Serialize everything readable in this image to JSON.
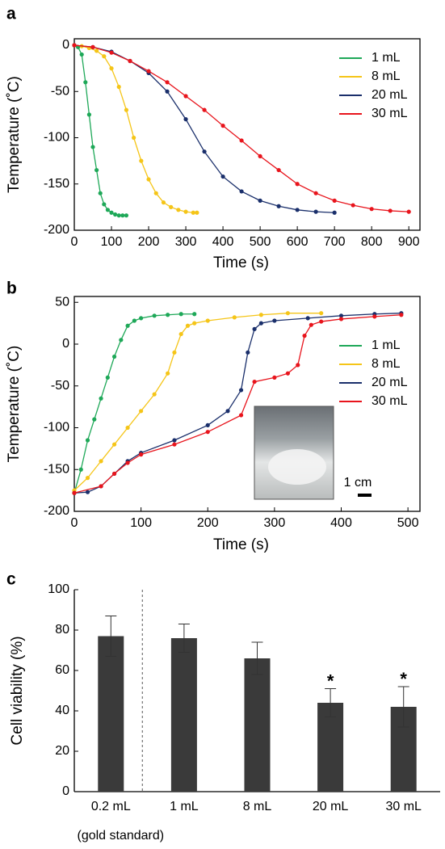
{
  "chart_data": [
    {
      "type": "line",
      "panel": "a",
      "xlabel": "Time (s)",
      "ylabel": "Temperature (˚C)",
      "xlim": [
        0,
        930
      ],
      "ylim": [
        -200,
        7
      ],
      "xticks": [
        0,
        100,
        200,
        300,
        400,
        500,
        600,
        700,
        800,
        900
      ],
      "yticks": [
        0,
        -50,
        -100,
        -150,
        -200
      ],
      "series": [
        {
          "name": "1 mL",
          "color": "#1ea858",
          "x": [
            0,
            10,
            20,
            30,
            40,
            50,
            60,
            70,
            80,
            90,
            100,
            110,
            120,
            130,
            140
          ],
          "values": [
            0,
            -2,
            -10,
            -40,
            -75,
            -110,
            -135,
            -160,
            -172,
            -178,
            -181,
            -183,
            -184,
            -184,
            -184
          ]
        },
        {
          "name": "8 mL",
          "color": "#f5c518",
          "x": [
            0,
            20,
            40,
            60,
            80,
            100,
            120,
            140,
            160,
            180,
            200,
            220,
            240,
            260,
            280,
            300,
            320,
            330
          ],
          "values": [
            0,
            -1,
            -3,
            -6,
            -12,
            -25,
            -45,
            -70,
            -100,
            -125,
            -145,
            -160,
            -170,
            -175,
            -178,
            -180,
            -181,
            -181
          ]
        },
        {
          "name": "20 mL",
          "color": "#1a2f6b",
          "x": [
            0,
            50,
            100,
            150,
            200,
            250,
            300,
            350,
            400,
            450,
            500,
            550,
            600,
            650,
            700
          ],
          "values": [
            0,
            -2,
            -7,
            -17,
            -30,
            -50,
            -80,
            -115,
            -142,
            -158,
            -168,
            -174,
            -178,
            -180,
            -181
          ]
        },
        {
          "name": "30 mL",
          "color": "#e8141c",
          "x": [
            0,
            50,
            100,
            150,
            200,
            250,
            300,
            350,
            400,
            450,
            500,
            550,
            600,
            650,
            700,
            750,
            800,
            850,
            900
          ],
          "values": [
            0,
            -2,
            -8,
            -17,
            -28,
            -40,
            -55,
            -70,
            -87,
            -103,
            -120,
            -135,
            -150,
            -160,
            -168,
            -173,
            -177,
            -179,
            -180
          ]
        }
      ]
    },
    {
      "type": "line",
      "panel": "b",
      "xlabel": "Time (s)",
      "ylabel": "Temperature (˚C)",
      "xlim": [
        0,
        518
      ],
      "ylim": [
        -200,
        57
      ],
      "xticks": [
        0,
        100,
        200,
        300,
        400,
        500
      ],
      "yticks": [
        50,
        0,
        -50,
        -100,
        -150,
        -200
      ],
      "inset_label": "1 cm",
      "series": [
        {
          "name": "1 mL",
          "color": "#1ea858",
          "x": [
            0,
            10,
            20,
            30,
            40,
            50,
            60,
            70,
            80,
            90,
            100,
            120,
            140,
            160,
            180
          ],
          "values": [
            -178,
            -150,
            -115,
            -90,
            -65,
            -40,
            -15,
            5,
            22,
            28,
            31,
            34,
            35,
            36,
            36
          ]
        },
        {
          "name": "8 mL",
          "color": "#f5c518",
          "x": [
            0,
            20,
            40,
            60,
            80,
            100,
            120,
            140,
            150,
            160,
            170,
            180,
            200,
            240,
            280,
            320,
            370
          ],
          "values": [
            -175,
            -160,
            -140,
            -120,
            -100,
            -80,
            -60,
            -35,
            -10,
            12,
            22,
            25,
            28,
            32,
            35,
            37,
            37
          ]
        },
        {
          "name": "20 mL",
          "color": "#1a2f6b",
          "x": [
            0,
            20,
            40,
            60,
            80,
            100,
            150,
            200,
            230,
            250,
            260,
            270,
            280,
            300,
            350,
            400,
            450,
            490
          ],
          "values": [
            -178,
            -177,
            -170,
            -155,
            -140,
            -130,
            -115,
            -97,
            -80,
            -55,
            -10,
            18,
            25,
            28,
            31,
            34,
            36,
            37
          ]
        },
        {
          "name": "30 mL",
          "color": "#e8141c",
          "x": [
            0,
            40,
            60,
            80,
            100,
            150,
            200,
            250,
            270,
            300,
            320,
            335,
            345,
            355,
            370,
            400,
            450,
            490
          ],
          "values": [
            -178,
            -170,
            -155,
            -142,
            -132,
            -120,
            -105,
            -85,
            -45,
            -40,
            -35,
            -25,
            10,
            23,
            27,
            30,
            33,
            35
          ]
        }
      ]
    },
    {
      "type": "bar",
      "panel": "c",
      "ylabel": "Cell viability (%)",
      "categories": [
        "0.2 mL",
        "1 mL",
        "8 mL",
        "20 mL",
        "30 mL"
      ],
      "category_notes": [
        "(gold standard)",
        null,
        null,
        null,
        null
      ],
      "values": [
        77,
        76,
        66,
        44,
        42
      ],
      "errors": [
        10,
        7,
        8,
        7,
        10
      ],
      "significance": [
        null,
        null,
        null,
        "*",
        "*"
      ],
      "color": "#3a3a3a",
      "ylim": [
        0,
        100
      ],
      "yticks": [
        0,
        20,
        40,
        60,
        80,
        100
      ]
    }
  ]
}
